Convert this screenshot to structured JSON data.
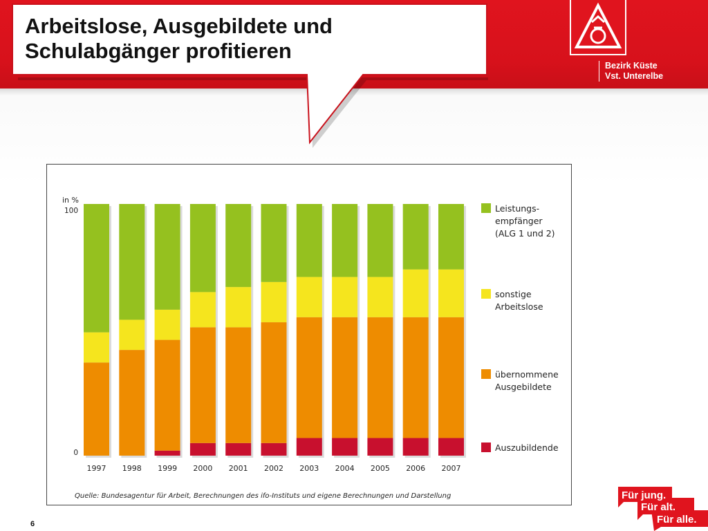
{
  "header": {
    "title_lines": [
      "Arbeitslose, Ausgebildete und",
      "Schulabgänger profitieren"
    ],
    "district_lines": [
      "Bezirk Küste",
      "Vst. Unterelbe"
    ],
    "logo_icon": "ig-metall-logo-icon",
    "brand_color": "#e0141e"
  },
  "chart_data": {
    "type": "bar",
    "stacked": true,
    "unit_label": "in %",
    "ylim": [
      0,
      100
    ],
    "yticks": [
      "100",
      "0"
    ],
    "categories": [
      "1997",
      "1998",
      "1999",
      "2000",
      "2001",
      "2002",
      "2003",
      "2004",
      "2005",
      "2006",
      "2007"
    ],
    "series": [
      {
        "name": "Auszubildende",
        "color": "#c8102e",
        "values": [
          0,
          0,
          2,
          5,
          5,
          5,
          7,
          7,
          7,
          7,
          7
        ]
      },
      {
        "name": "übernommene Ausgebildete",
        "color": "#ee8c00",
        "values": [
          37,
          42,
          44,
          46,
          46,
          48,
          48,
          48,
          48,
          48,
          48
        ]
      },
      {
        "name": "sonstige Arbeitslose",
        "color": "#f5e51e",
        "values": [
          12,
          12,
          12,
          14,
          16,
          16,
          16,
          16,
          16,
          19,
          19
        ]
      },
      {
        "name": "Leistungs-empfänger (ALG 1 und 2)",
        "color": "#95c11f",
        "values": [
          51,
          46,
          42,
          35,
          33,
          31,
          29,
          29,
          29,
          26,
          26
        ]
      }
    ],
    "legend": [
      {
        "lines": [
          "Leistungs-",
          "empfänger",
          "(ALG 1 und 2)"
        ],
        "color": "#95c11f"
      },
      {
        "lines": [
          "sonstige",
          "Arbeitslose"
        ],
        "color": "#f5e51e"
      },
      {
        "lines": [
          "übernommene",
          "Ausgebildete"
        ],
        "color": "#ee8c00"
      },
      {
        "lines": [
          "Auszubildende"
        ],
        "color": "#c8102e"
      }
    ],
    "legend_position": "right",
    "grid": false,
    "source": "Quelle: Bundesagentur für Arbeit, Berechnungen des ifo-Instituts und eigene Berechnungen und Darstellung"
  },
  "footer": {
    "page_number": "6",
    "slogan_lines": [
      "Für jung.",
      "Für alt.",
      "Für alle."
    ]
  }
}
